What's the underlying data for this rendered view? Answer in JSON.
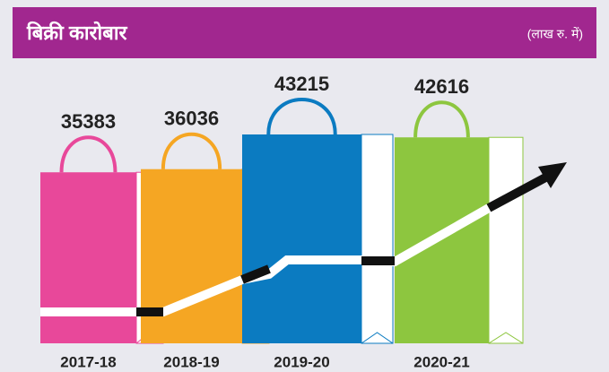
{
  "chart_data": {
    "type": "bag-bar",
    "title": "बिक्री कारोबार",
    "subtitle": "(लाख रु. में)",
    "categories": [
      "2017-18",
      "2018-19",
      "2019-20",
      "2020-21"
    ],
    "series": [
      {
        "name": null,
        "values": [
          35383,
          36036,
          43215,
          42616
        ]
      }
    ],
    "colors": [
      "#e8489a",
      "#f5a623",
      "#0b7bc1",
      "#8dc63f"
    ]
  }
}
